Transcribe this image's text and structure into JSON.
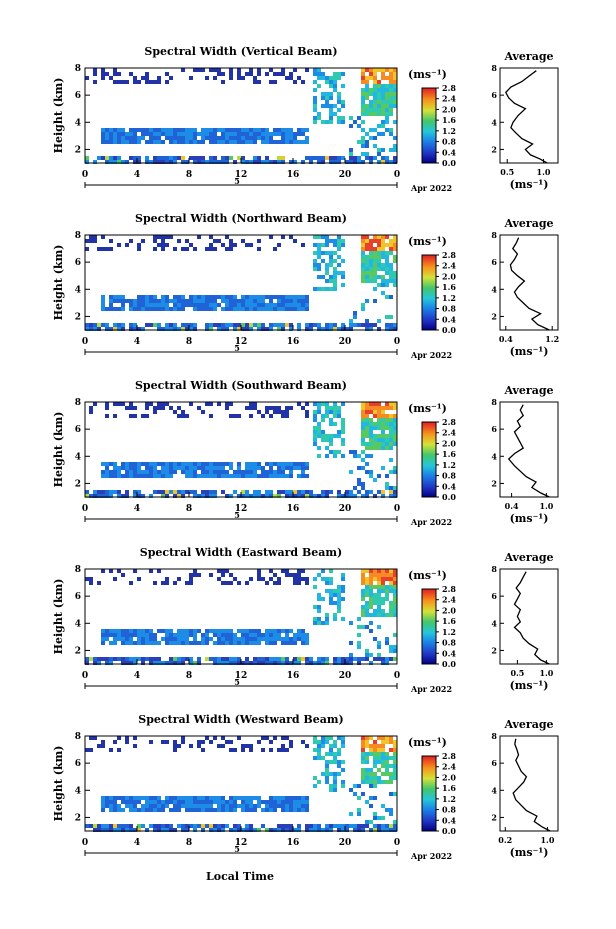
{
  "figure": {
    "xlabel": "Local Time",
    "date_label": "Apr 2022",
    "date_marker": "5",
    "average_title": "Average",
    "unit_label": "(ms⁻¹)",
    "colorbar_ticks": [
      "0.0",
      "0.4",
      "0.8",
      "1.2",
      "1.6",
      "2.0",
      "2.4",
      "2.8"
    ]
  },
  "chart_data": [
    {
      "type": "heatmap",
      "title": "Spectral Width (Vertical Beam)",
      "ylabel": "Height (km)",
      "xlabel": "",
      "xticks": [
        "0",
        "4",
        "8",
        "12",
        "16",
        "20",
        "0"
      ],
      "yticks": [
        "2",
        "4",
        "6",
        "8"
      ],
      "xlim": [
        0,
        24
      ],
      "ylim": [
        1,
        8
      ],
      "colorbar": {
        "label": "(ms⁻¹)",
        "range": [
          0.0,
          2.8
        ]
      },
      "average_profile": {
        "title": "Average",
        "xlabel": "(ms⁻¹)",
        "xticks": [
          "0.5",
          "1.0"
        ],
        "xlim": [
          0.4,
          1.2
        ],
        "points": [
          [
            1.05,
            1.0
          ],
          [
            0.95,
            1.3
          ],
          [
            0.82,
            1.6
          ],
          [
            0.75,
            2.0
          ],
          [
            0.85,
            2.4
          ],
          [
            0.7,
            2.8
          ],
          [
            0.62,
            3.2
          ],
          [
            0.55,
            3.6
          ],
          [
            0.58,
            4.0
          ],
          [
            0.65,
            4.5
          ],
          [
            0.75,
            5.0
          ],
          [
            0.6,
            5.4
          ],
          [
            0.52,
            5.8
          ],
          [
            0.48,
            6.2
          ],
          [
            0.55,
            6.6
          ],
          [
            0.7,
            7.0
          ],
          [
            0.8,
            7.4
          ],
          [
            0.9,
            7.8
          ]
        ]
      }
    },
    {
      "type": "heatmap",
      "title": "Spectral Width (Northward Beam)",
      "ylabel": "Height (km)",
      "xlabel": "",
      "xticks": [
        "0",
        "4",
        "8",
        "12",
        "16",
        "20",
        "0"
      ],
      "yticks": [
        "2",
        "4",
        "6",
        "8"
      ],
      "xlim": [
        0,
        24
      ],
      "ylim": [
        1,
        8
      ],
      "colorbar": {
        "label": "(ms⁻¹)",
        "range": [
          0.0,
          2.8
        ]
      },
      "average_profile": {
        "title": "Average",
        "xlabel": "(ms⁻¹)",
        "xticks": [
          "0.4",
          "1.2"
        ],
        "xlim": [
          0.3,
          1.3
        ],
        "points": [
          [
            1.15,
            1.0
          ],
          [
            0.95,
            1.4
          ],
          [
            0.85,
            1.8
          ],
          [
            1.0,
            2.2
          ],
          [
            0.8,
            2.6
          ],
          [
            0.7,
            3.0
          ],
          [
            0.6,
            3.4
          ],
          [
            0.55,
            3.8
          ],
          [
            0.62,
            4.2
          ],
          [
            0.72,
            4.6
          ],
          [
            0.6,
            5.0
          ],
          [
            0.5,
            5.4
          ],
          [
            0.48,
            5.8
          ],
          [
            0.55,
            6.2
          ],
          [
            0.6,
            6.6
          ],
          [
            0.52,
            7.0
          ],
          [
            0.58,
            7.4
          ],
          [
            0.62,
            7.8
          ]
        ]
      }
    },
    {
      "type": "heatmap",
      "title": "Spectral Width (Southward Beam)",
      "ylabel": "Height (km)",
      "xlabel": "",
      "xticks": [
        "0",
        "4",
        "8",
        "12",
        "16",
        "20",
        "0"
      ],
      "yticks": [
        "2",
        "4",
        "6",
        "8"
      ],
      "xlim": [
        0,
        24
      ],
      "ylim": [
        1,
        8
      ],
      "colorbar": {
        "label": "(ms⁻¹)",
        "range": [
          0.0,
          2.8
        ]
      },
      "average_profile": {
        "title": "Average",
        "xlabel": "(ms⁻¹)",
        "xticks": [
          "0.4",
          "1.0"
        ],
        "xlim": [
          0.2,
          1.2
        ],
        "points": [
          [
            1.05,
            1.0
          ],
          [
            0.9,
            1.3
          ],
          [
            0.75,
            1.7
          ],
          [
            0.82,
            2.1
          ],
          [
            0.65,
            2.5
          ],
          [
            0.55,
            2.9
          ],
          [
            0.45,
            3.3
          ],
          [
            0.35,
            3.8
          ],
          [
            0.45,
            4.2
          ],
          [
            0.6,
            4.6
          ],
          [
            0.55,
            5.0
          ],
          [
            0.5,
            5.4
          ],
          [
            0.45,
            5.8
          ],
          [
            0.55,
            6.2
          ],
          [
            0.5,
            6.6
          ],
          [
            0.6,
            7.0
          ],
          [
            0.55,
            7.4
          ],
          [
            0.6,
            7.8
          ]
        ]
      }
    },
    {
      "type": "heatmap",
      "title": "Spectral Width (Eastward Beam)",
      "ylabel": "Height (km)",
      "xlabel": "",
      "xticks": [
        "0",
        "4",
        "8",
        "12",
        "16",
        "20",
        "0"
      ],
      "yticks": [
        "2",
        "4",
        "6",
        "8"
      ],
      "xlim": [
        0,
        24
      ],
      "ylim": [
        1,
        8
      ],
      "colorbar": {
        "label": "(ms⁻¹)",
        "range": [
          0.0,
          2.8
        ]
      },
      "average_profile": {
        "title": "Average",
        "xlabel": "(ms⁻¹)",
        "xticks": [
          "0.5",
          "1.0"
        ],
        "xlim": [
          0.2,
          1.2
        ],
        "points": [
          [
            1.05,
            1.0
          ],
          [
            0.9,
            1.3
          ],
          [
            0.8,
            1.7
          ],
          [
            0.85,
            2.1
          ],
          [
            0.7,
            2.5
          ],
          [
            0.6,
            2.9
          ],
          [
            0.55,
            3.3
          ],
          [
            0.45,
            3.7
          ],
          [
            0.55,
            4.1
          ],
          [
            0.5,
            4.5
          ],
          [
            0.55,
            5.0
          ],
          [
            0.45,
            5.4
          ],
          [
            0.5,
            5.8
          ],
          [
            0.55,
            6.2
          ],
          [
            0.48,
            6.6
          ],
          [
            0.55,
            7.0
          ],
          [
            0.6,
            7.4
          ],
          [
            0.65,
            7.8
          ]
        ]
      }
    },
    {
      "type": "heatmap",
      "title": "Spectral Width (Westward Beam)",
      "ylabel": "Height (km)",
      "xlabel": "Local Time",
      "xticks": [
        "0",
        "4",
        "8",
        "12",
        "16",
        "20",
        "0"
      ],
      "yticks": [
        "2",
        "4",
        "6",
        "8"
      ],
      "xlim": [
        0,
        24
      ],
      "ylim": [
        1,
        8
      ],
      "colorbar": {
        "label": "(ms⁻¹)",
        "range": [
          0.0,
          2.8
        ]
      },
      "average_profile": {
        "title": "Average",
        "xlabel": "(ms⁻¹)",
        "xticks": [
          "0.2",
          "1.0"
        ],
        "xlim": [
          0.1,
          1.2
        ],
        "points": [
          [
            1.05,
            1.0
          ],
          [
            0.9,
            1.3
          ],
          [
            0.75,
            1.7
          ],
          [
            0.8,
            2.1
          ],
          [
            0.6,
            2.5
          ],
          [
            0.5,
            2.9
          ],
          [
            0.4,
            3.3
          ],
          [
            0.35,
            3.8
          ],
          [
            0.45,
            4.2
          ],
          [
            0.55,
            4.6
          ],
          [
            0.6,
            5.0
          ],
          [
            0.5,
            5.4
          ],
          [
            0.45,
            5.8
          ],
          [
            0.4,
            6.2
          ],
          [
            0.45,
            6.6
          ],
          [
            0.42,
            7.0
          ],
          [
            0.38,
            7.4
          ],
          [
            0.4,
            7.8
          ]
        ]
      }
    }
  ]
}
